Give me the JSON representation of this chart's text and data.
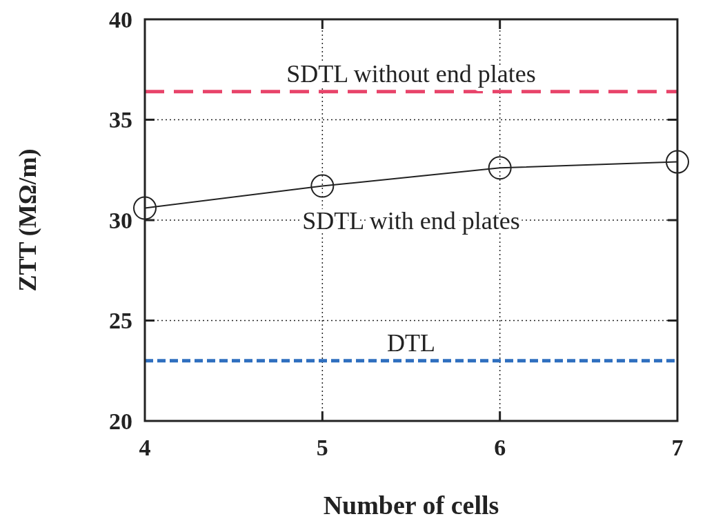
{
  "chart_data": {
    "type": "line",
    "xlabel": "Number of cells",
    "ylabel": "ZTT (MΩ/m)",
    "x": [
      4,
      5,
      6,
      7
    ],
    "series": [
      {
        "name": "SDTL with end plates",
        "color": "#222222",
        "values": [
          30.6,
          31.7,
          32.6,
          32.9
        ]
      }
    ],
    "marker": "circle",
    "line_style": "solid",
    "grid": true,
    "xlim": [
      4,
      7
    ],
    "xticks": [
      4,
      5,
      6,
      7
    ],
    "ylim": [
      20,
      40
    ],
    "yticks": [
      20,
      25,
      30,
      35,
      40
    ],
    "ref_lines": [
      {
        "axis": "y",
        "value": 36.4,
        "label": "SDTL without end plates",
        "color": "#e8436a",
        "line_style": "dashed"
      },
      {
        "axis": "y",
        "value": 23.0,
        "label": "DTL",
        "color": "#2f6fbf",
        "line_style": "dotted"
      }
    ]
  }
}
